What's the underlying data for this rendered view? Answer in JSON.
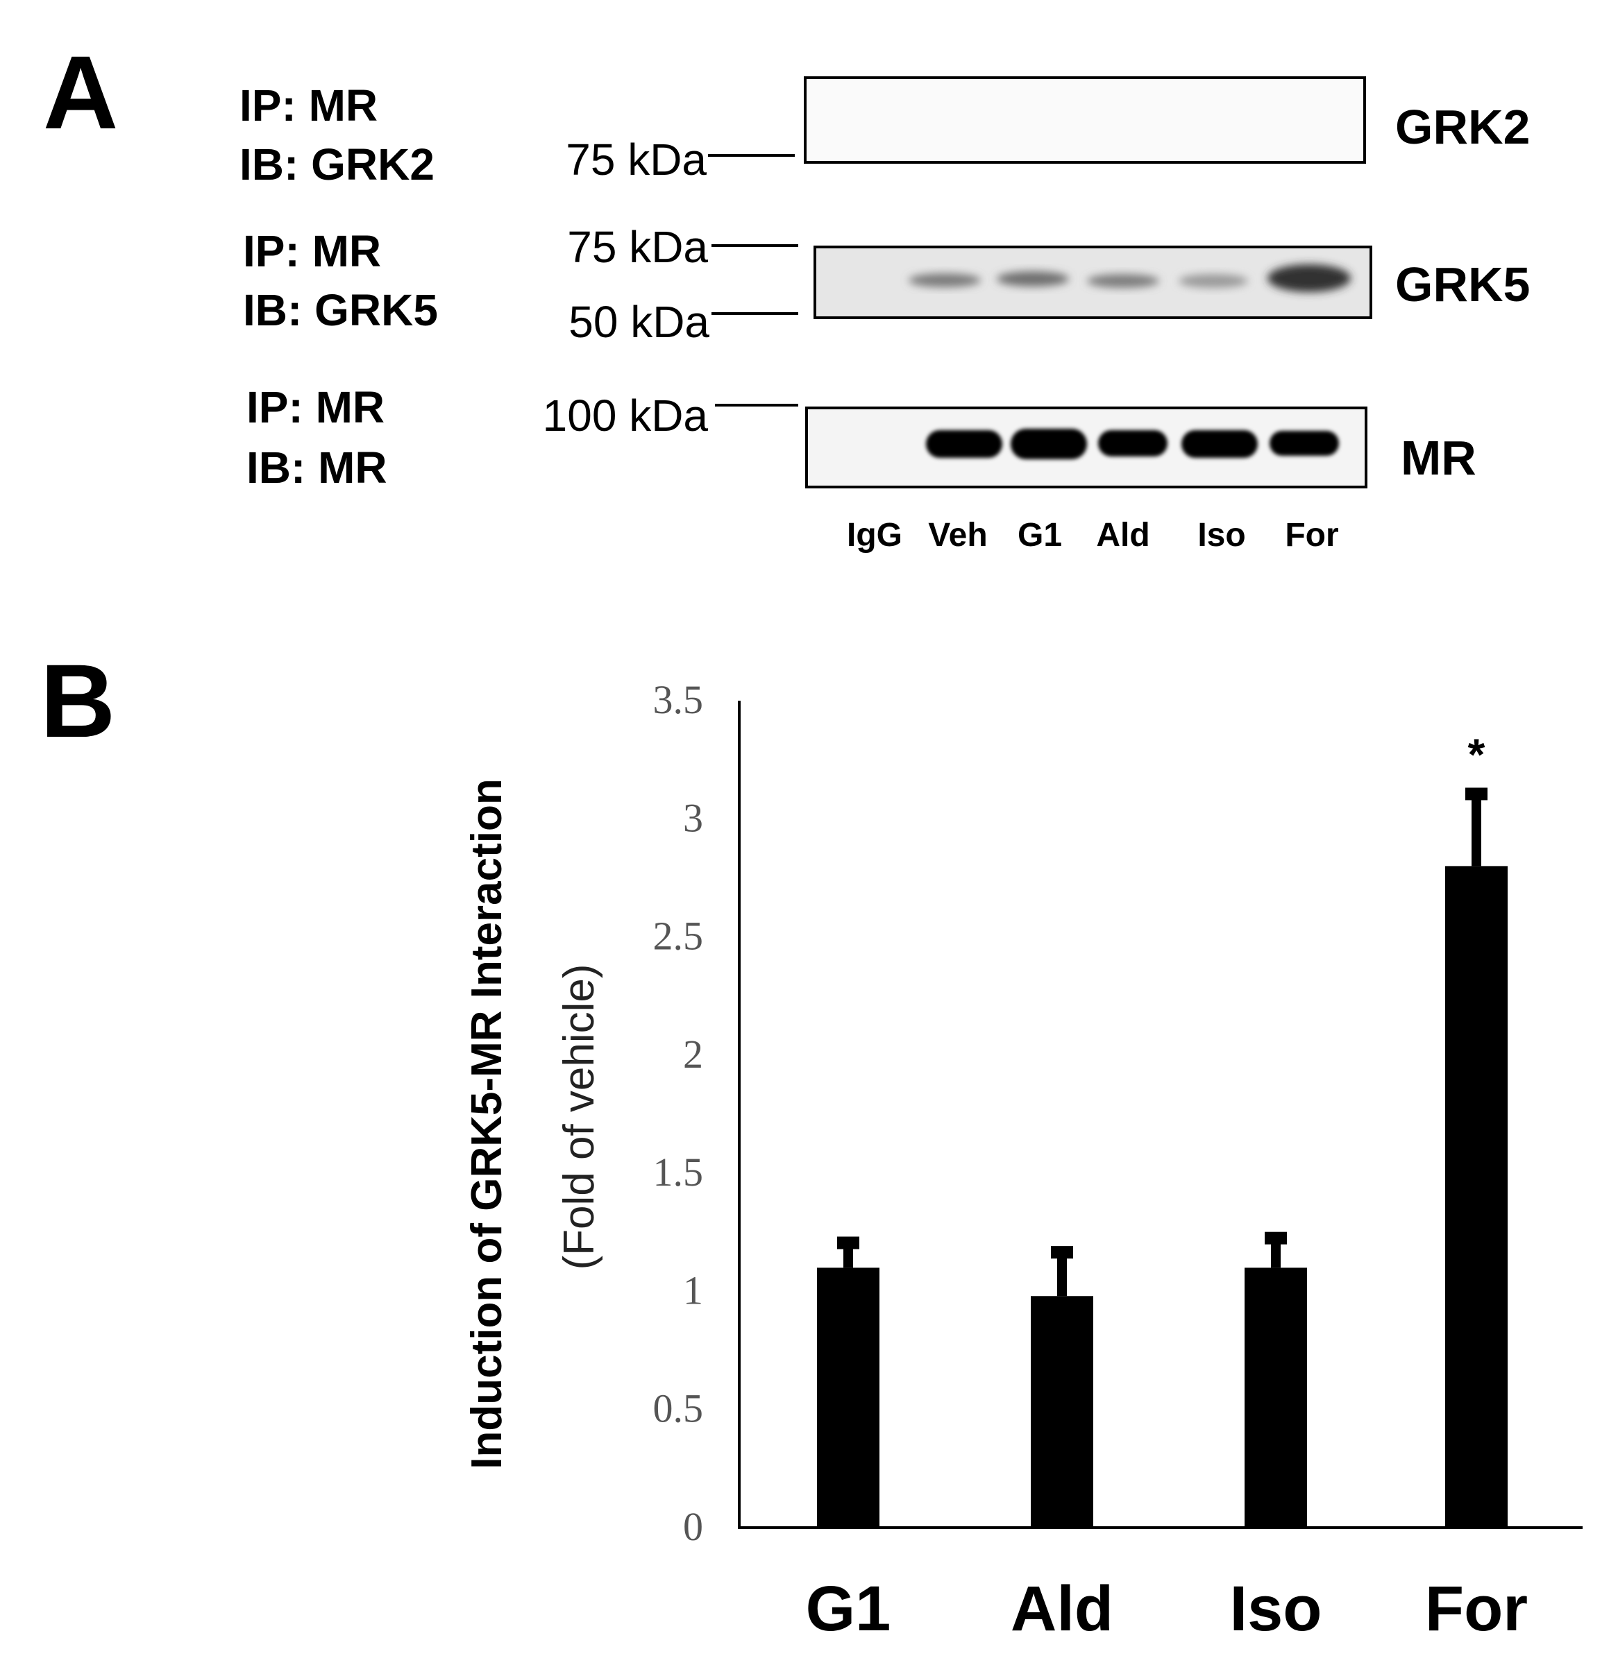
{
  "panel_a": {
    "letter": "A",
    "blots": [
      {
        "ip": "IP: MR",
        "ib": "IB: GRK2",
        "markers": [
          "75 kDa"
        ],
        "band": "GRK2"
      },
      {
        "ip": "IP: MR",
        "ib": "IB: GRK5",
        "markers": [
          "75 kDa",
          "50 kDa"
        ],
        "band": "GRK5"
      },
      {
        "ip": "IP: MR",
        "ib": "IB: MR",
        "markers": [
          "100 kDa"
        ],
        "band": "MR"
      }
    ],
    "lanes": [
      "IgG",
      "Veh",
      "G1",
      "Ald",
      "Iso",
      "For"
    ]
  },
  "panel_b": {
    "letter": "B"
  },
  "chart_data": {
    "type": "bar",
    "categories": [
      "G1",
      "Ald",
      "Iso",
      "For"
    ],
    "values": [
      1.1,
      0.98,
      1.1,
      2.8
    ],
    "errors": [
      0.12,
      0.2,
      0.14,
      0.32
    ],
    "annotations": [
      "",
      "",
      "",
      "*"
    ],
    "ylabel": "Induction of GRK5-MR Interaction",
    "ylabel_sub": "(Fold of vehicle)",
    "ylim": [
      0,
      3.5
    ],
    "yticks": [
      "0",
      "0.5",
      "1",
      "1.5",
      "2",
      "2.5",
      "3",
      "3.5"
    ],
    "bar_color": "#000000",
    "grid": false
  }
}
